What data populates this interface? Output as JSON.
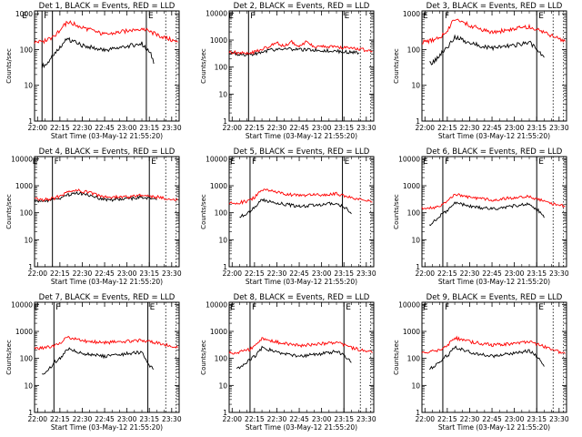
{
  "figure": {
    "ylabel": "Counts/sec",
    "xlabel": "Start Time (03-May-12 21:55:20)",
    "series_colors": {
      "Events": "#000000",
      "LLD": "#ff0000"
    }
  },
  "chart_data": [
    {
      "type": "line",
      "title": "Det 1, BLACK = Events, RED = LLD",
      "flags": [
        "E",
        "F",
        "E"
      ],
      "xlabel": "Start Time (03-May-12 21:55:20)",
      "ylabel": "Counts/sec",
      "x_ticks": [
        "22:00",
        "22:15",
        "22:30",
        "22:45",
        "23:00",
        "23:15",
        "23:30"
      ],
      "y_ticks": [
        "1",
        "10",
        "100",
        "1000"
      ],
      "x_range": [
        "21:58",
        "23:35"
      ],
      "y_range": [
        1,
        1200
      ],
      "y_scale": "log",
      "vlines": [
        "22:03",
        "22:10",
        "23:13",
        "23:26",
        "23:33"
      ],
      "series": [
        {
          "name": "Events",
          "color": "#000000",
          "x": [
            "22:03",
            "22:07",
            "22:11",
            "22:15",
            "22:20",
            "22:30",
            "22:45",
            "23:00",
            "23:10",
            "23:16",
            "23:18"
          ],
          "y": [
            35,
            40,
            75,
            120,
            200,
            130,
            95,
            125,
            145,
            75,
            40
          ]
        },
        {
          "name": "LLD",
          "color": "#ff0000",
          "x": [
            "21:58",
            "22:05",
            "22:11",
            "22:15",
            "22:20",
            "22:30",
            "22:45",
            "23:00",
            "23:10",
            "23:20",
            "23:34"
          ],
          "y": [
            160,
            175,
            230,
            330,
            600,
            420,
            260,
            330,
            390,
            260,
            160
          ]
        }
      ]
    },
    {
      "type": "line",
      "title": "Det 2, BLACK = Events, RED = LLD",
      "flags": [
        "E",
        "F",
        "E"
      ],
      "xlabel": "Start Time (03-May-12 21:55:20)",
      "ylabel": "Counts/sec",
      "x_ticks": [
        "22:00",
        "22:15",
        "22:30",
        "22:45",
        "23:00",
        "23:15",
        "23:30"
      ],
      "y_ticks": [
        "1",
        "10",
        "100",
        "1000",
        "10000"
      ],
      "x_range": [
        "21:58",
        "23:35"
      ],
      "y_range": [
        1,
        12000
      ],
      "y_scale": "log",
      "vlines": [
        "22:11",
        "23:14",
        "23:26",
        "23:33"
      ],
      "series": [
        {
          "name": "Events",
          "color": "#000000",
          "x": [
            "21:58",
            "22:05",
            "22:10",
            "22:15",
            "22:25",
            "22:35",
            "22:45",
            "23:00",
            "23:15",
            "23:25"
          ],
          "y": [
            330,
            300,
            290,
            310,
            420,
            480,
            440,
            420,
            370,
            340
          ]
        },
        {
          "name": "LLD",
          "color": "#ff0000",
          "x": [
            "21:58",
            "22:05",
            "22:10",
            "22:15",
            "22:25",
            "22:30",
            "22:35",
            "22:40",
            "22:45",
            "22:50",
            "22:55",
            "23:05",
            "23:20",
            "23:34"
          ],
          "y": [
            360,
            340,
            330,
            360,
            580,
            800,
            580,
            850,
            580,
            880,
            580,
            560,
            500,
            400
          ]
        }
      ]
    },
    {
      "type": "line",
      "title": "Det 3, BLACK = Events, RED = LLD",
      "flags": [
        "E",
        "F",
        "E"
      ],
      "xlabel": "Start Time (03-May-12 21:55:20)",
      "ylabel": "Counts/sec",
      "x_ticks": [
        "22:00",
        "22:15",
        "22:30",
        "22:45",
        "23:00",
        "23:15",
        "23:30"
      ],
      "y_ticks": [
        "1",
        "10",
        "100",
        "1000"
      ],
      "x_range": [
        "21:58",
        "23:35"
      ],
      "y_range": [
        1,
        1200
      ],
      "y_scale": "log",
      "vlines": [
        "22:12",
        "23:15",
        "23:26",
        "23:33"
      ],
      "series": [
        {
          "name": "Events",
          "color": "#000000",
          "x": [
            "22:03",
            "22:07",
            "22:12",
            "22:16",
            "22:20",
            "22:30",
            "22:45",
            "23:00",
            "23:10",
            "23:16",
            "23:20"
          ],
          "y": [
            40,
            50,
            85,
            130,
            230,
            150,
            110,
            130,
            160,
            95,
            60
          ]
        },
        {
          "name": "LLD",
          "color": "#ff0000",
          "x": [
            "21:58",
            "22:05",
            "22:12",
            "22:16",
            "22:20",
            "22:30",
            "22:45",
            "23:00",
            "23:10",
            "23:20",
            "23:34"
          ],
          "y": [
            160,
            180,
            260,
            400,
            700,
            470,
            300,
            380,
            430,
            290,
            170
          ]
        }
      ]
    },
    {
      "type": "line",
      "title": "Det 4, BLACK = Events, RED = LLD",
      "flags": [
        "E",
        "F",
        "E"
      ],
      "xlabel": "Start Time (03-May-12 21:55:20)",
      "ylabel": "Counts/sec",
      "x_ticks": [
        "22:00",
        "22:15",
        "22:30",
        "22:45",
        "23:00",
        "23:15",
        "23:30"
      ],
      "y_ticks": [
        "1",
        "10",
        "100",
        "1000",
        "10000"
      ],
      "x_range": [
        "21:58",
        "23:35"
      ],
      "y_range": [
        1,
        12000
      ],
      "y_scale": "log",
      "vlines": [
        "22:10",
        "23:15",
        "23:26",
        "23:33"
      ],
      "series": [
        {
          "name": "Events",
          "color": "#000000",
          "x": [
            "21:58",
            "22:05",
            "22:12",
            "22:18",
            "22:25",
            "22:35",
            "22:45",
            "23:00",
            "23:10",
            "23:20"
          ],
          "y": [
            280,
            270,
            300,
            400,
            560,
            450,
            300,
            320,
            380,
            300
          ]
        },
        {
          "name": "LLD",
          "color": "#ff0000",
          "x": [
            "21:58",
            "22:05",
            "22:12",
            "22:18",
            "22:25",
            "22:35",
            "22:45",
            "23:00",
            "23:10",
            "23:20",
            "23:34"
          ],
          "y": [
            320,
            300,
            350,
            500,
            700,
            560,
            380,
            380,
            450,
            380,
            300
          ]
        }
      ]
    },
    {
      "type": "line",
      "title": "Det 5, BLACK = Events, RED = LLD",
      "flags": [
        "E",
        "F",
        "E"
      ],
      "xlabel": "Start Time (03-May-12 21:55:20)",
      "ylabel": "Counts/sec",
      "x_ticks": [
        "22:00",
        "22:15",
        "22:30",
        "22:45",
        "23:00",
        "23:15",
        "23:30"
      ],
      "y_ticks": [
        "1",
        "10",
        "100",
        "1000",
        "10000"
      ],
      "x_range": [
        "21:58",
        "23:35"
      ],
      "y_range": [
        1,
        12000
      ],
      "y_scale": "log",
      "vlines": [
        "22:12",
        "23:14",
        "23:26",
        "23:33"
      ],
      "series": [
        {
          "name": "Events",
          "color": "#000000",
          "x": [
            "22:05",
            "22:08",
            "22:12",
            "22:16",
            "22:20",
            "22:30",
            "22:45",
            "23:00",
            "23:10",
            "23:16",
            "23:20"
          ],
          "y": [
            70,
            80,
            110,
            170,
            300,
            230,
            170,
            200,
            230,
            150,
            90
          ]
        },
        {
          "name": "LLD",
          "color": "#ff0000",
          "x": [
            "21:58",
            "22:05",
            "22:12",
            "22:16",
            "22:20",
            "22:30",
            "22:45",
            "23:00",
            "23:10",
            "23:20",
            "23:34"
          ],
          "y": [
            220,
            240,
            280,
            420,
            750,
            560,
            420,
            470,
            520,
            350,
            250
          ]
        }
      ]
    },
    {
      "type": "line",
      "title": "Det 6, BLACK = Events, RED = LLD",
      "flags": [
        "E",
        "F",
        "E"
      ],
      "xlabel": "Start Time (03-May-12 21:55:20)",
      "ylabel": "Counts/sec",
      "x_ticks": [
        "22:00",
        "22:15",
        "22:30",
        "22:45",
        "23:00",
        "23:15",
        "23:30"
      ],
      "y_ticks": [
        "1",
        "10",
        "100",
        "1000",
        "10000"
      ],
      "x_range": [
        "21:58",
        "23:35"
      ],
      "y_range": [
        1,
        12000
      ],
      "y_scale": "log",
      "vlines": [
        "22:12",
        "23:15",
        "23:26",
        "23:33"
      ],
      "series": [
        {
          "name": "Events",
          "color": "#000000",
          "x": [
            "22:03",
            "22:07",
            "22:12",
            "22:16",
            "22:20",
            "22:30",
            "22:45",
            "23:00",
            "23:10",
            "23:16",
            "23:20"
          ],
          "y": [
            35,
            55,
            90,
            130,
            240,
            170,
            140,
            180,
            210,
            120,
            65
          ]
        },
        {
          "name": "LLD",
          "color": "#ff0000",
          "x": [
            "21:58",
            "22:05",
            "22:12",
            "22:16",
            "22:20",
            "22:30",
            "22:45",
            "23:00",
            "23:10",
            "23:20",
            "23:34"
          ],
          "y": [
            140,
            150,
            200,
            300,
            500,
            380,
            300,
            360,
            400,
            260,
            170
          ]
        }
      ]
    },
    {
      "type": "line",
      "title": "Det 7, BLACK = Events, RED = LLD",
      "flags": [
        "E",
        "F",
        "E"
      ],
      "xlabel": "Start Time (03-May-12 21:55:20)",
      "ylabel": "Counts/sec",
      "x_ticks": [
        "22:00",
        "22:15",
        "22:30",
        "22:45",
        "23:00",
        "23:15",
        "23:30"
      ],
      "y_ticks": [
        "1",
        "10",
        "100",
        "1000",
        "10000"
      ],
      "x_range": [
        "21:58",
        "23:35"
      ],
      "y_range": [
        1,
        12000
      ],
      "y_scale": "log",
      "vlines": [
        "22:11",
        "23:14",
        "23:26",
        "23:33"
      ],
      "series": [
        {
          "name": "Events",
          "color": "#000000",
          "x": [
            "22:03",
            "22:07",
            "22:11",
            "22:16",
            "22:20",
            "22:30",
            "22:45",
            "23:00",
            "23:10",
            "23:14",
            "23:18"
          ],
          "y": [
            25,
            35,
            70,
            110,
            230,
            150,
            120,
            150,
            170,
            60,
            40
          ]
        },
        {
          "name": "LLD",
          "color": "#ff0000",
          "x": [
            "21:58",
            "22:05",
            "22:11",
            "22:16",
            "22:20",
            "22:30",
            "22:45",
            "23:00",
            "23:10",
            "23:20",
            "23:34"
          ],
          "y": [
            230,
            250,
            290,
            400,
            600,
            450,
            380,
            430,
            470,
            370,
            250
          ]
        }
      ]
    },
    {
      "type": "line",
      "title": "Det 8, BLACK = Events, RED = LLD",
      "flags": [
        "E",
        "F",
        "E"
      ],
      "xlabel": "Start Time (03-May-12 21:55:20)",
      "ylabel": "Counts/sec",
      "x_ticks": [
        "22:00",
        "22:15",
        "22:30",
        "22:45",
        "23:00",
        "23:15",
        "23:30"
      ],
      "y_ticks": [
        "1",
        "10",
        "100",
        "1000",
        "10000"
      ],
      "x_range": [
        "21:58",
        "23:35"
      ],
      "y_range": [
        1,
        12000
      ],
      "y_scale": "log",
      "vlines": [
        "22:12",
        "23:15",
        "23:26",
        "23:33"
      ],
      "series": [
        {
          "name": "Events",
          "color": "#000000",
          "x": [
            "22:03",
            "22:07",
            "22:12",
            "22:16",
            "22:20",
            "22:30",
            "22:45",
            "23:00",
            "23:10",
            "23:16",
            "23:20"
          ],
          "y": [
            40,
            55,
            90,
            130,
            250,
            170,
            120,
            150,
            180,
            120,
            70
          ]
        },
        {
          "name": "LLD",
          "color": "#ff0000",
          "x": [
            "21:58",
            "22:05",
            "22:12",
            "22:16",
            "22:20",
            "22:30",
            "22:45",
            "23:00",
            "23:10",
            "23:20",
            "23:34"
          ],
          "y": [
            160,
            170,
            220,
            330,
            550,
            400,
            300,
            350,
            400,
            250,
            160
          ]
        }
      ]
    },
    {
      "type": "line",
      "title": "Det 9, BLACK = Events, RED = LLD",
      "flags": [
        "E",
        "F",
        "E"
      ],
      "xlabel": "Start Time (03-May-12 21:55:20)",
      "ylabel": "Counts/sec",
      "x_ticks": [
        "22:00",
        "22:15",
        "22:30",
        "22:45",
        "23:00",
        "23:15",
        "23:30"
      ],
      "y_ticks": [
        "1",
        "10",
        "100",
        "1000",
        "10000"
      ],
      "x_range": [
        "21:58",
        "23:35"
      ],
      "y_range": [
        1,
        12000
      ],
      "y_scale": "log",
      "vlines": [
        "22:12",
        "23:15",
        "23:26",
        "23:33"
      ],
      "series": [
        {
          "name": "Events",
          "color": "#000000",
          "x": [
            "22:03",
            "22:07",
            "22:12",
            "22:16",
            "22:20",
            "22:30",
            "22:45",
            "23:00",
            "23:10",
            "23:16",
            "23:20"
          ],
          "y": [
            40,
            55,
            100,
            140,
            260,
            170,
            120,
            160,
            190,
            110,
            50
          ]
        },
        {
          "name": "LLD",
          "color": "#ff0000",
          "x": [
            "21:58",
            "22:05",
            "22:12",
            "22:16",
            "22:20",
            "22:30",
            "22:45",
            "23:00",
            "23:10",
            "23:20",
            "23:34"
          ],
          "y": [
            170,
            180,
            230,
            340,
            580,
            420,
            310,
            360,
            420,
            270,
            150
          ]
        }
      ]
    }
  ]
}
